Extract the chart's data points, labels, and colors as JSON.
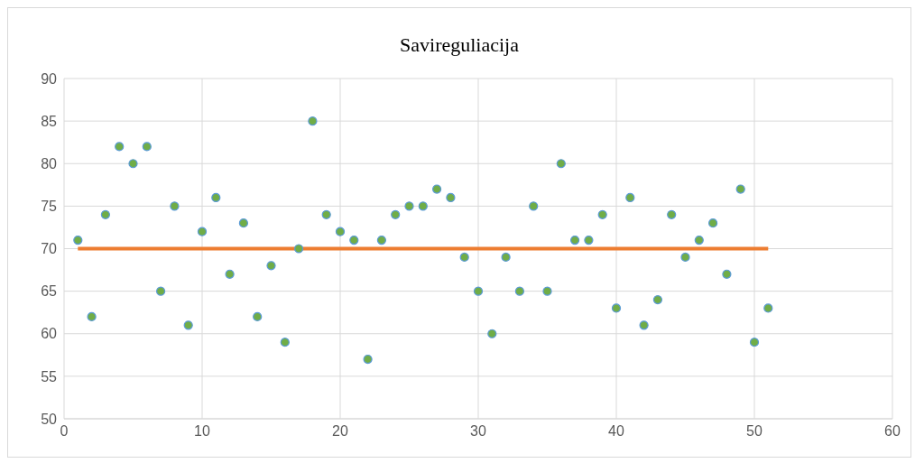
{
  "chart_data": {
    "type": "scatter",
    "title": "Savireguliacija",
    "xlim": [
      0,
      60
    ],
    "xticks": [
      0,
      10,
      20,
      30,
      40,
      50,
      60
    ],
    "ylim": [
      50,
      90
    ],
    "yticks": [
      50,
      55,
      60,
      65,
      70,
      75,
      80,
      85,
      90
    ],
    "grid": true,
    "series": [
      {
        "color": "#70ad47",
        "marker": "circle",
        "x": [
          1,
          2,
          3,
          4,
          5,
          6,
          7,
          8,
          9,
          10,
          11,
          12,
          13,
          14,
          15,
          16,
          17,
          18,
          19,
          20,
          21,
          22,
          23,
          24,
          25,
          26,
          27,
          28,
          29,
          30,
          31,
          32,
          33,
          34,
          35,
          36,
          37,
          38,
          39,
          40,
          41,
          42,
          43,
          44,
          45,
          46,
          47,
          48,
          49,
          50,
          51
        ],
        "values": [
          71,
          62,
          74,
          82,
          80,
          82,
          65,
          75,
          61,
          72,
          76,
          67,
          73,
          62,
          68,
          59,
          70,
          85,
          74,
          72,
          71,
          57,
          71,
          74,
          75,
          75,
          77,
          76,
          69,
          65,
          60,
          69,
          65,
          75,
          65,
          80,
          71,
          71,
          74,
          63,
          76,
          61,
          64,
          74,
          69,
          71,
          73,
          67,
          77,
          59,
          63
        ]
      },
      {
        "type": "line",
        "color": "#ed7d31",
        "marker": "none",
        "x": [
          1,
          51
        ],
        "values": [
          70,
          70
        ]
      }
    ]
  }
}
